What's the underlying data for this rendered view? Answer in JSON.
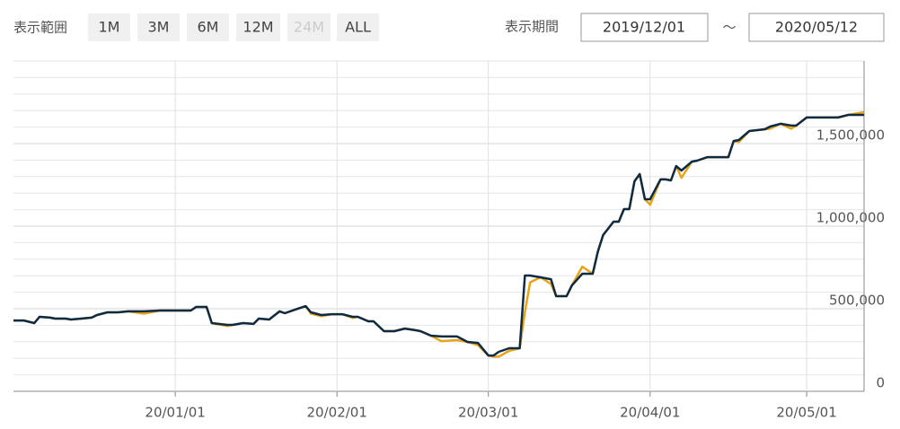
{
  "controls": {
    "range_label": "表示範囲",
    "ranges": [
      {
        "label": "1M",
        "disabled": false
      },
      {
        "label": "3M",
        "disabled": false
      },
      {
        "label": "6M",
        "disabled": false
      },
      {
        "label": "12M",
        "disabled": false
      },
      {
        "label": "24M",
        "disabled": true
      },
      {
        "label": "ALL",
        "disabled": false
      }
    ],
    "period_label": "表示期間",
    "start": "2019/12/01",
    "separator": "～",
    "end": "2020/05/12"
  },
  "chart_data": {
    "type": "line",
    "x": [
      "2019-12-01",
      "2019-12-03",
      "2019-12-05",
      "2019-12-06",
      "2019-12-08",
      "2019-12-09",
      "2019-12-11",
      "2019-12-12",
      "2019-12-14",
      "2019-12-16",
      "2019-12-17",
      "2019-12-19",
      "2019-12-21",
      "2019-12-23",
      "2019-12-26",
      "2019-12-29",
      "2020-01-04",
      "2020-01-05",
      "2020-01-07",
      "2020-01-08",
      "2020-01-11",
      "2020-01-12",
      "2020-01-14",
      "2020-01-16",
      "2020-01-17",
      "2020-01-19",
      "2020-01-21",
      "2020-01-22",
      "2020-01-24",
      "2020-01-26",
      "2020-01-27",
      "2020-01-29",
      "2020-01-31",
      "2020-02-02",
      "2020-02-04",
      "2020-02-05",
      "2020-02-07",
      "2020-02-08",
      "2020-02-10",
      "2020-02-12",
      "2020-02-14",
      "2020-02-16",
      "2020-02-17",
      "2020-02-19",
      "2020-02-21",
      "2020-02-24",
      "2020-02-26",
      "2020-02-28",
      "2020-03-01",
      "2020-03-02",
      "2020-03-03",
      "2020-03-05",
      "2020-03-07",
      "2020-03-08",
      "2020-03-09",
      "2020-03-11",
      "2020-03-13",
      "2020-03-14",
      "2020-03-16",
      "2020-03-17",
      "2020-03-19",
      "2020-03-21",
      "2020-03-22",
      "2020-03-23",
      "2020-03-25",
      "2020-03-26",
      "2020-03-27",
      "2020-03-28",
      "2020-03-29",
      "2020-03-30",
      "2020-03-31",
      "2020-04-01",
      "2020-04-03",
      "2020-04-04",
      "2020-04-05",
      "2020-04-06",
      "2020-04-07",
      "2020-04-09",
      "2020-04-10",
      "2020-04-12",
      "2020-04-16",
      "2020-04-17",
      "2020-04-18",
      "2020-04-20",
      "2020-04-23",
      "2020-04-24",
      "2020-04-26",
      "2020-04-28",
      "2020-04-29",
      "2020-05-01",
      "2020-05-07",
      "2020-05-09",
      "2020-05-12"
    ],
    "series": [
      {
        "name": "orange",
        "color": "#e8a317",
        "values": [
          429000,
          429000,
          413000,
          451000,
          446000,
          440000,
          440000,
          435000,
          440000,
          446000,
          462000,
          478000,
          478000,
          484000,
          470000,
          489000,
          489000,
          511000,
          511000,
          413000,
          395000,
          402000,
          413000,
          408000,
          440000,
          435000,
          484000,
          473000,
          495000,
          516000,
          470000,
          455000,
          467000,
          467000,
          445000,
          451000,
          424000,
          424000,
          364000,
          364000,
          380000,
          370000,
          364000,
          337000,
          304000,
          310000,
          299000,
          280000,
          217000,
          210000,
          210000,
          245000,
          261000,
          480000,
          660000,
          690000,
          650000,
          576000,
          576000,
          641000,
          755000,
          712000,
          848000,
          946000,
          1027000,
          1027000,
          1103000,
          1103000,
          1272000,
          1315000,
          1163000,
          1130000,
          1283000,
          1283000,
          1277000,
          1364000,
          1293000,
          1391000,
          1397000,
          1418000,
          1418000,
          1516000,
          1510000,
          1576000,
          1587000,
          1590000,
          1620000,
          1590000,
          1609000,
          1658000,
          1658000,
          1674000,
          1690000
        ]
      },
      {
        "name": "navy",
        "color": "#0d2b45",
        "values": [
          429000,
          429000,
          413000,
          451000,
          446000,
          440000,
          440000,
          435000,
          440000,
          446000,
          462000,
          478000,
          478000,
          484000,
          484000,
          489000,
          489000,
          511000,
          511000,
          413000,
          402000,
          402000,
          413000,
          408000,
          440000,
          435000,
          484000,
          473000,
          495000,
          516000,
          478000,
          462000,
          467000,
          467000,
          451000,
          451000,
          424000,
          424000,
          364000,
          364000,
          380000,
          370000,
          364000,
          337000,
          332000,
          332000,
          299000,
          293000,
          217000,
          217000,
          239000,
          261000,
          261000,
          701000,
          701000,
          690000,
          679000,
          576000,
          576000,
          641000,
          712000,
          712000,
          848000,
          946000,
          1027000,
          1027000,
          1103000,
          1103000,
          1272000,
          1315000,
          1163000,
          1163000,
          1283000,
          1283000,
          1277000,
          1364000,
          1337000,
          1391000,
          1397000,
          1418000,
          1418000,
          1516000,
          1522000,
          1576000,
          1587000,
          1603000,
          1620000,
          1609000,
          1609000,
          1658000,
          1658000,
          1674000,
          1674000
        ]
      }
    ],
    "xlim": [
      "2019-12-01",
      "2020-05-12"
    ],
    "xticks": [
      {
        "value": "2020-01-01",
        "label": "20/01/01"
      },
      {
        "value": "2020-02-01",
        "label": "20/02/01"
      },
      {
        "value": "2020-03-01",
        "label": "20/03/01"
      },
      {
        "value": "2020-04-01",
        "label": "20/04/01"
      },
      {
        "value": "2020-05-01",
        "label": "20/05/01"
      }
    ],
    "ylim": [
      0,
      2000000
    ],
    "yticks": [
      0,
      {
        "value": 500000,
        "label": "500,000"
      },
      {
        "value": 1000000,
        "label": "1,000,000"
      },
      {
        "value": 1500000,
        "label": "1,500,000"
      }
    ],
    "minor_yticks": [
      100000,
      200000,
      300000,
      400000,
      600000,
      700000,
      800000,
      900000,
      1100000,
      1200000,
      1300000,
      1400000,
      1600000,
      1700000,
      1800000,
      1900000,
      2000000
    ],
    "grid": true,
    "y_axis_side": "right"
  }
}
